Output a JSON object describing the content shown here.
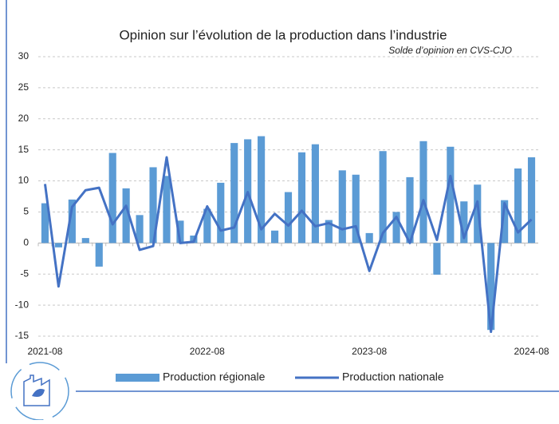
{
  "chart_data": {
    "type": "bar_line",
    "title": "Opinion sur l’évolution de la production dans l’industrie",
    "subtitle": "Solde d’opinion en CVS-CJO",
    "categories": [
      "2021-08",
      null,
      null,
      null,
      null,
      null,
      null,
      null,
      null,
      null,
      null,
      null,
      "2022-08",
      null,
      null,
      null,
      null,
      null,
      null,
      null,
      null,
      null,
      null,
      null,
      "2023-08",
      null,
      null,
      null,
      null,
      null,
      null,
      null,
      null,
      null,
      null,
      null,
      "2024-08"
    ],
    "series": [
      {
        "name": "Production régionale",
        "color": "#5b9bd5",
        "kind": "bar",
        "values": [
          6.4,
          -0.7,
          7.0,
          0.8,
          -3.8,
          14.5,
          8.8,
          4.5,
          12.2,
          10.8,
          3.6,
          1.2,
          5.5,
          9.7,
          16.1,
          16.7,
          17.2,
          2.0,
          8.2,
          14.6,
          15.9,
          3.7,
          11.7,
          11.0,
          1.6,
          14.8,
          5.0,
          10.6,
          16.4,
          -5.1,
          15.5,
          6.7,
          9.4,
          -14.0,
          6.9,
          12.0,
          13.8
        ]
      },
      {
        "name": "Production nationale",
        "color": "#4472c4",
        "kind": "line",
        "values": [
          9.5,
          -7.0,
          5.8,
          8.5,
          8.9,
          3.0,
          6.0,
          -1.1,
          -0.5,
          13.8,
          0.0,
          0.2,
          5.9,
          2.0,
          2.5,
          8.2,
          2.2,
          4.7,
          2.8,
          5.2,
          2.7,
          3.2,
          2.2,
          2.7,
          -4.5,
          1.6,
          4.2,
          0.0,
          6.9,
          0.5,
          10.8,
          0.8,
          6.7,
          -14.3,
          6.4,
          1.7,
          3.8
        ]
      }
    ],
    "ylim": [
      -15,
      30
    ],
    "yticks": [
      -15,
      -10,
      -5,
      0,
      5,
      10,
      15,
      20,
      25,
      30
    ],
    "grid": true
  }
}
